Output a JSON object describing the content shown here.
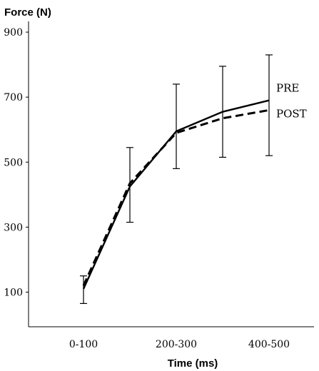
{
  "chart_data": {
    "type": "line",
    "ylabel": "Force (N)",
    "xlabel": "Time (ms)",
    "ylim": [
      0,
      900
    ],
    "yticks": [
      100,
      300,
      500,
      700,
      900
    ],
    "x_positions": [
      1,
      2,
      3,
      4,
      5
    ],
    "xtick_labels": [
      {
        "pos": 1,
        "label": "0-100"
      },
      {
        "pos": 3,
        "label": "200-300"
      },
      {
        "pos": 5,
        "label": "400-500"
      }
    ],
    "series": [
      {
        "name": "PRE",
        "style": "solid",
        "values": [
          110,
          425,
          595,
          655,
          690
        ],
        "err_upper": [
          150,
          545,
          740,
          795,
          830
        ],
        "err_lower": [
          65,
          315,
          480,
          515,
          520
        ]
      },
      {
        "name": "POST",
        "style": "dashed",
        "values": [
          120,
          435,
          590,
          635,
          660
        ],
        "err_upper": [
          150,
          545,
          740,
          795,
          830
        ],
        "err_lower": [
          65,
          315,
          480,
          515,
          520
        ]
      }
    ],
    "legend": "inline-right",
    "grid": false
  }
}
